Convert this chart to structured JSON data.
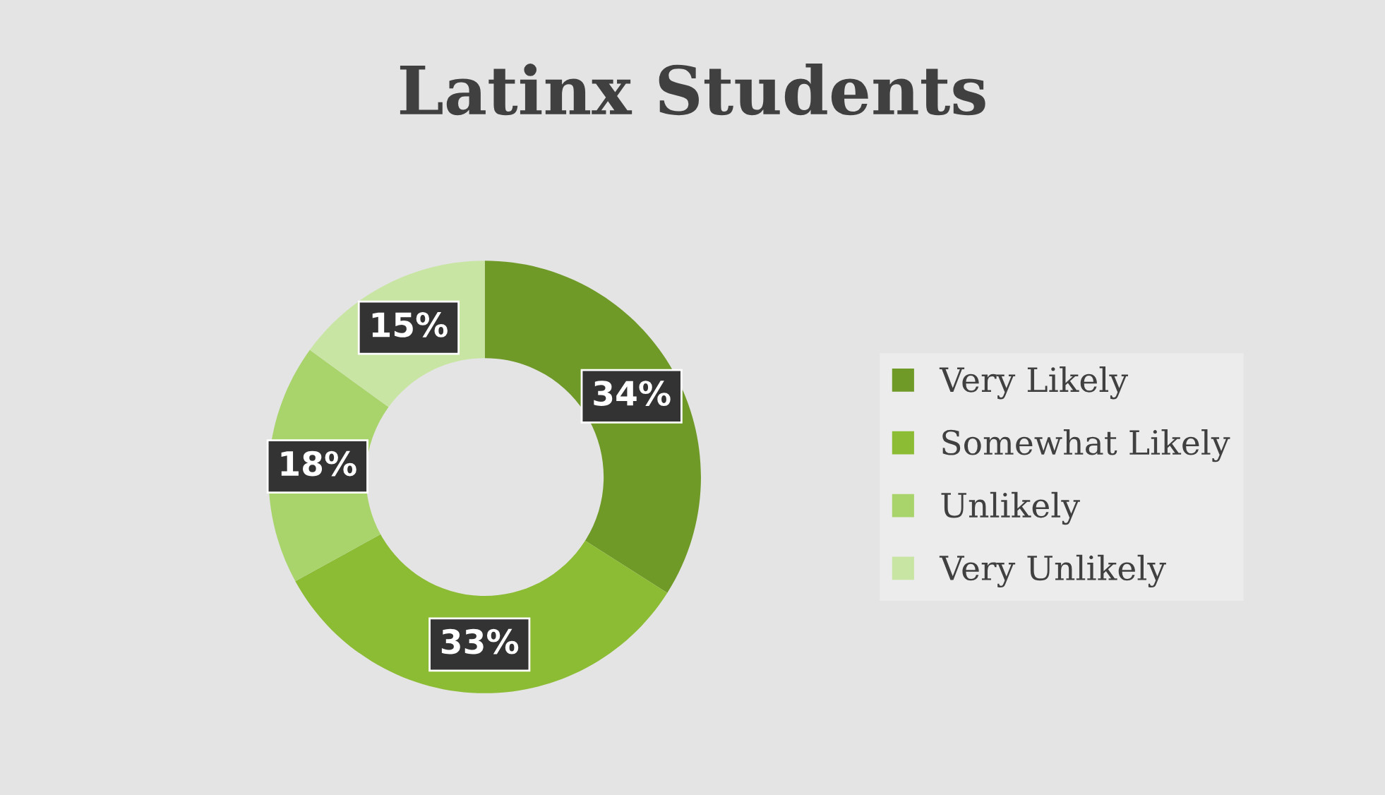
{
  "chart_data": {
    "type": "donut",
    "title": "Latinx Students",
    "categories": [
      "Very Likely",
      "Somewhat Likely",
      "Unlikely",
      "Very Unlikely"
    ],
    "values": [
      34,
      33,
      18,
      15
    ],
    "colors": [
      "#6f9a28",
      "#8cbb34",
      "#a9d46c",
      "#c9e5a4"
    ],
    "value_labels": [
      "34%",
      "33%",
      "18%",
      "15%"
    ],
    "legend": "right"
  }
}
